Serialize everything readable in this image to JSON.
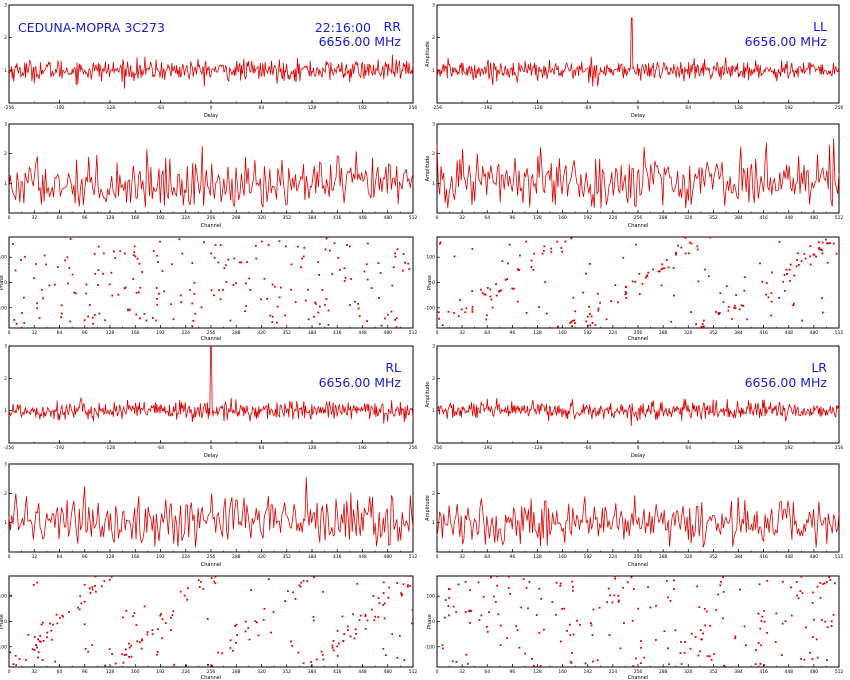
{
  "figure": {
    "title": "CEDUNA-MOPRA 3C273",
    "time": "22:16:00"
  },
  "colors": {
    "trace": "#dd0000",
    "label": "#1a1adc",
    "frame": "#000000"
  },
  "chart_data": [
    {
      "id": "RR",
      "type": "line",
      "annotations": {
        "pol": "RR",
        "freq": "6656.00 MHz"
      },
      "delay": {
        "xlabel": "Delay",
        "ylabel": "",
        "xlim": [
          -256,
          256
        ],
        "ylim": [
          0,
          3
        ],
        "baseline": 1.0,
        "noise": 0.16,
        "spike": null
      },
      "amplitude": {
        "xlabel": "Channel",
        "ylabel": "",
        "xlim": [
          0,
          512
        ],
        "ylim": [
          0,
          3
        ],
        "mean": 1.0,
        "noise": 0.42
      },
      "phase": {
        "type": "scatter",
        "xlabel": "Channel",
        "ylabel": "Phase",
        "xlim": [
          0,
          512
        ],
        "ylim": [
          -180,
          180
        ],
        "pattern": "random",
        "slopes": 0
      }
    },
    {
      "id": "LL",
      "type": "line",
      "annotations": {
        "pol": "LL",
        "freq": "6656.00 MHz"
      },
      "delay": {
        "xlabel": "Delay",
        "ylabel": "Amplitude",
        "xlim": [
          -256,
          256
        ],
        "ylim": [
          0,
          3
        ],
        "baseline": 1.0,
        "noise": 0.15,
        "spike": {
          "x": -8,
          "y": 2.6
        }
      },
      "amplitude": {
        "xlabel": "Channel",
        "ylabel": "Amplitude",
        "xlim": [
          0,
          512
        ],
        "ylim": [
          0,
          3
        ],
        "mean": 1.1,
        "noise": 0.45
      },
      "phase": {
        "type": "scatter",
        "xlabel": "Channel",
        "ylabel": "Phase",
        "xlim": [
          0,
          512
        ],
        "ylim": [
          -180,
          180
        ],
        "pattern": "wrapped",
        "slopes": 3
      }
    },
    {
      "id": "RL",
      "type": "line",
      "annotations": {
        "pol": "RL",
        "freq": "6656.00 MHz"
      },
      "delay": {
        "xlabel": "Delay",
        "ylabel": "",
        "xlim": [
          -256,
          256
        ],
        "ylim": [
          0,
          3
        ],
        "baseline": 1.0,
        "noise": 0.15,
        "spike": {
          "x": 0,
          "y": 3.0
        }
      },
      "amplitude": {
        "xlabel": "Channel",
        "ylabel": "",
        "xlim": [
          0,
          512
        ],
        "ylim": [
          0,
          3
        ],
        "mean": 1.1,
        "noise": 0.45
      },
      "phase": {
        "type": "scatter",
        "xlabel": "Channel",
        "ylabel": "Phase",
        "xlim": [
          0,
          512
        ],
        "ylim": [
          -180,
          180
        ],
        "pattern": "wrapped",
        "slopes": 4
      }
    },
    {
      "id": "LR",
      "type": "line",
      "annotations": {
        "pol": "LR",
        "freq": "6656.00 MHz"
      },
      "delay": {
        "xlabel": "Delay",
        "ylabel": "Amplitude",
        "xlim": [
          -256,
          256
        ],
        "ylim": [
          0,
          3
        ],
        "baseline": 1.0,
        "noise": 0.14,
        "spike": null
      },
      "amplitude": {
        "xlabel": "Channel",
        "ylabel": "Amplitude",
        "xlim": [
          0,
          512
        ],
        "ylim": [
          0,
          3
        ],
        "mean": 1.0,
        "noise": 0.4
      },
      "phase": {
        "type": "scatter",
        "xlabel": "Channel",
        "ylabel": "Phase",
        "xlim": [
          0,
          512
        ],
        "ylim": [
          -180,
          180
        ],
        "pattern": "random",
        "slopes": 0
      }
    }
  ]
}
